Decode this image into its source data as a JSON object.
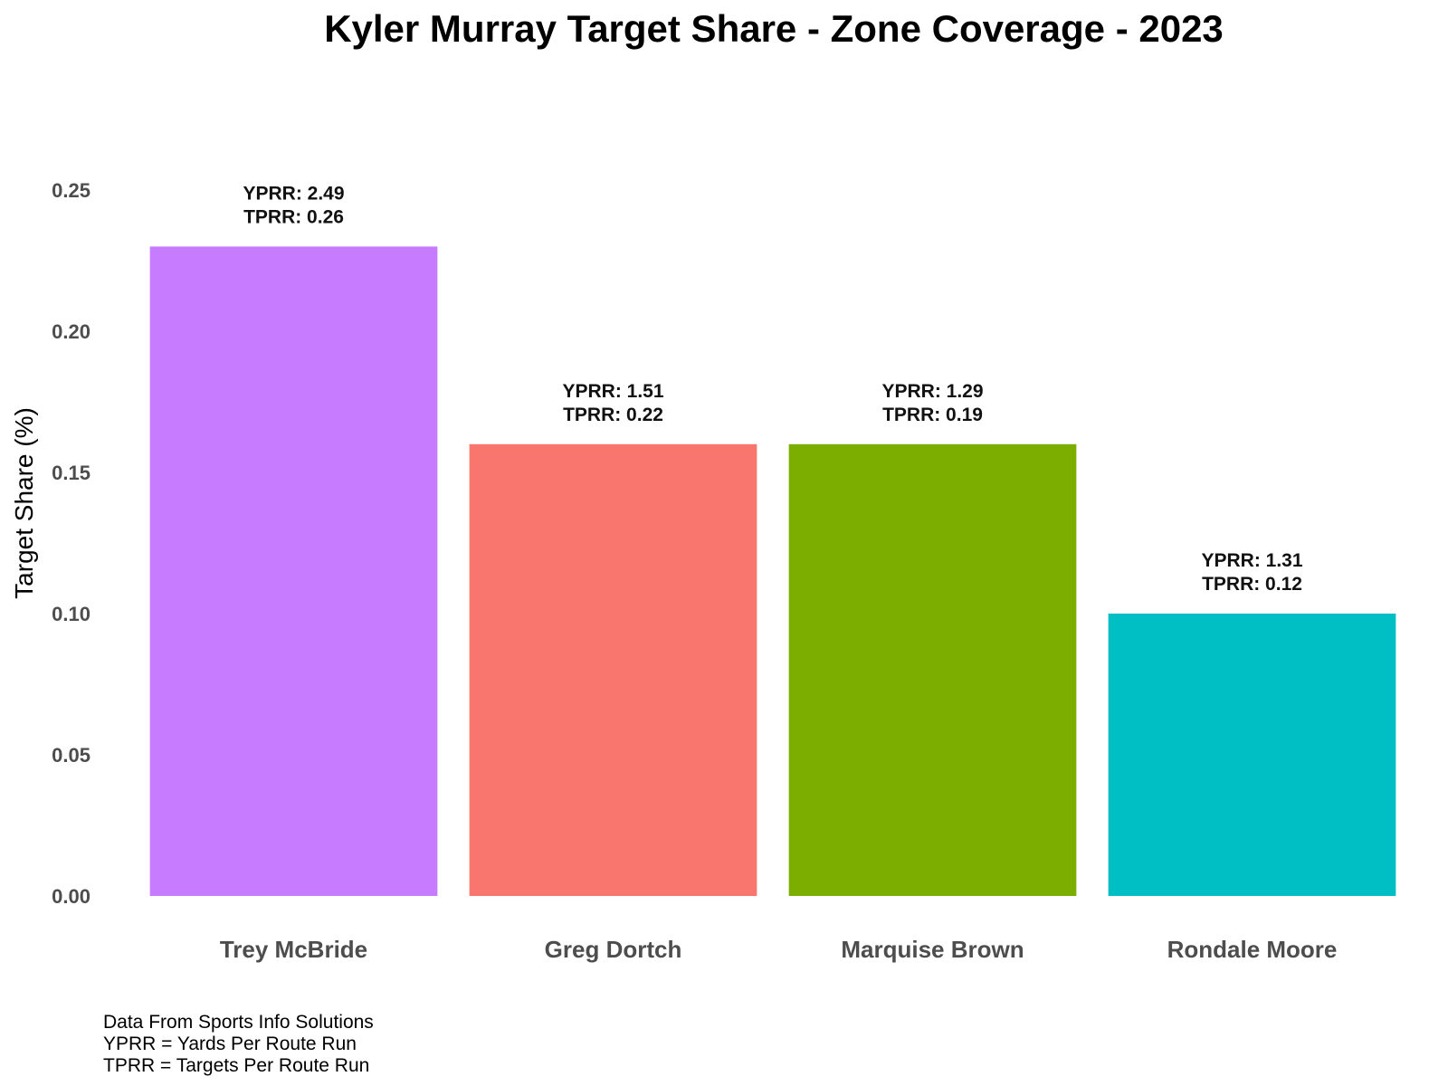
{
  "chart_data": {
    "type": "bar",
    "title": "Kyler Murray Target Share - Zone Coverage - 2023",
    "xlabel": "",
    "ylabel": "Target Share (%)",
    "ylim": [
      0,
      0.25
    ],
    "y_ticks": [
      "0.00",
      "0.05",
      "0.10",
      "0.15",
      "0.20",
      "0.25"
    ],
    "grid": false,
    "legend": "none",
    "categories": [
      "Trey McBride",
      "Greg Dortch",
      "Marquise Brown",
      "Rondale Moore"
    ],
    "values": [
      0.23,
      0.16,
      0.16,
      0.1
    ],
    "colors": [
      "#C77CFF",
      "#F8766D",
      "#7CAE00",
      "#00BFC4"
    ],
    "annotations": [
      [
        "YPRR: 2.49",
        "TPRR: 0.26"
      ],
      [
        "YPRR: 1.51",
        "TPRR: 0.22"
      ],
      [
        "YPRR: 1.29",
        "TPRR: 0.19"
      ],
      [
        "YPRR: 1.31",
        "TPRR: 0.12"
      ]
    ]
  },
  "caption": {
    "lines": [
      "Data From Sports Info Solutions",
      "YPRR = Yards Per Route Run",
      "TPRR = Targets Per Route Run"
    ]
  }
}
